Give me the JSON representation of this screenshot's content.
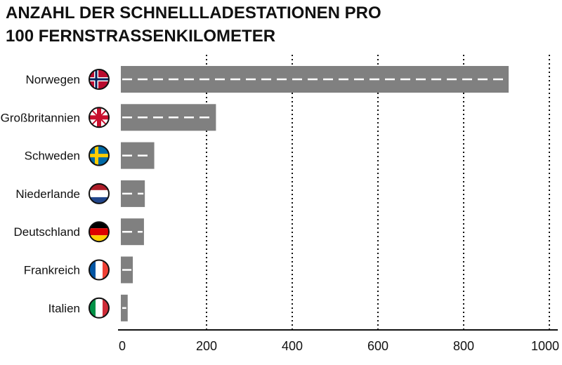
{
  "title_lines": [
    "ANZAHL DER SCHNELLLADESTATIONEN PRO",
    "100 FERNSTRASSENKILOMETER"
  ],
  "colors": {
    "bar": "#808080",
    "lane_marking": "#ffffff",
    "grid": "#111111",
    "text": "#111111"
  },
  "chart_data": {
    "type": "bar",
    "orientation": "horizontal",
    "title": "ANZAHL DER SCHNELLLADESTATIONEN PRO 100 FERNSTRASSENKILOMETER",
    "categories": [
      "Norwegen",
      "Großbritannien",
      "Schweden",
      "Niederlande",
      "Deutschland",
      "Frankreich",
      "Italien"
    ],
    "values": [
      905,
      222,
      78,
      56,
      54,
      28,
      16
    ],
    "flags": [
      "flag-norway-icon",
      "flag-uk-icon",
      "flag-sweden-icon",
      "flag-netherlands-icon",
      "flag-germany-icon",
      "flag-france-icon",
      "flag-italy-icon"
    ],
    "xlim": [
      0,
      1000
    ],
    "xticks": [
      0,
      200,
      400,
      600,
      800,
      1000
    ],
    "xlabel": "",
    "ylabel": "",
    "grid": "vertical dotted",
    "legend": "none"
  }
}
